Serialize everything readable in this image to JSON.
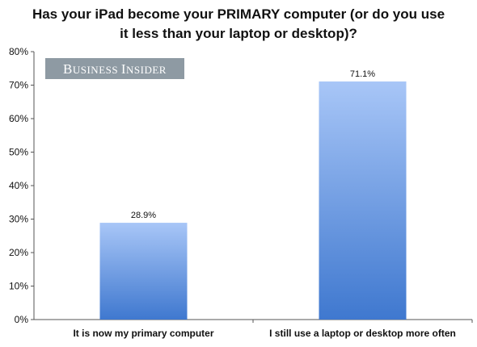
{
  "title_lines": [
    "Has your iPad become your PRIMARY computer (or do you use",
    "it less than your laptop or desktop)?"
  ],
  "brand": {
    "text": "Business Insider",
    "bg": "#8e9aa3"
  },
  "colors": {
    "bar_top": "#a8c6f7",
    "bar_bottom": "#3f78cf",
    "axis": "#555555",
    "label": "#111111"
  },
  "chart_data": {
    "type": "bar",
    "title": "Has your iPad become your PRIMARY computer (or do you use it less than your laptop or desktop)?",
    "categories": [
      "It is now my primary computer",
      "I still use a laptop or desktop more often"
    ],
    "values": [
      28.9,
      71.1
    ],
    "value_labels": [
      "28.9%",
      "71.1%"
    ],
    "ylim": [
      0,
      80
    ],
    "yticks": [
      0,
      10,
      20,
      30,
      40,
      50,
      60,
      70,
      80
    ],
    "ytick_labels": [
      "0%",
      "10%",
      "20%",
      "30%",
      "40%",
      "50%",
      "60%",
      "70%",
      "80%"
    ],
    "xlabel": "",
    "ylabel": "",
    "grid": false,
    "legend": "none"
  }
}
